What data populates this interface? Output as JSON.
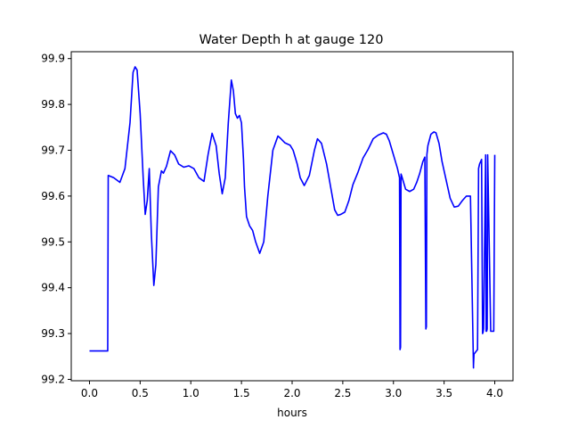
{
  "chart_data": {
    "type": "line",
    "title": "Water Depth h at gauge 120",
    "xlabel": "hours",
    "ylabel": "",
    "xlim": [
      -0.18,
      4.18
    ],
    "ylim": [
      99.197,
      99.915
    ],
    "grid": false,
    "xticks": [
      0.0,
      0.5,
      1.0,
      1.5,
      2.0,
      2.5,
      3.0,
      3.5,
      4.0
    ],
    "xtick_labels": [
      "0.0",
      "0.5",
      "1.0",
      "1.5",
      "2.0",
      "2.5",
      "3.0",
      "3.5",
      "4.0"
    ],
    "yticks": [
      99.2,
      99.3,
      99.4,
      99.5,
      99.6,
      99.7,
      99.8,
      99.9
    ],
    "ytick_labels": [
      "99.2",
      "99.3",
      "99.4",
      "99.5",
      "99.6",
      "99.7",
      "99.8",
      "99.9"
    ],
    "colors": {
      "series": "#0000ff",
      "axes": "#000000",
      "background": "#ffffff"
    },
    "series": [
      {
        "x": [
          0.0,
          0.18,
          0.185,
          0.24,
          0.3,
          0.35,
          0.4,
          0.43,
          0.45,
          0.47,
          0.5,
          0.53,
          0.55,
          0.57,
          0.59,
          0.61,
          0.635,
          0.655,
          0.68,
          0.71,
          0.73,
          0.76,
          0.8,
          0.84,
          0.88,
          0.93,
          0.98,
          1.03,
          1.08,
          1.13,
          1.17,
          1.21,
          1.25,
          1.28,
          1.31,
          1.34,
          1.37,
          1.4,
          1.42,
          1.44,
          1.46,
          1.48,
          1.5,
          1.52,
          1.53,
          1.55,
          1.58,
          1.61,
          1.64,
          1.68,
          1.72,
          1.76,
          1.81,
          1.86,
          1.89,
          1.93,
          1.98,
          2.01,
          2.05,
          2.08,
          2.12,
          2.17,
          2.22,
          2.25,
          2.29,
          2.34,
          2.38,
          2.42,
          2.45,
          2.48,
          2.52,
          2.56,
          2.6,
          2.65,
          2.7,
          2.75,
          2.8,
          2.85,
          2.9,
          2.93,
          2.96,
          3.0,
          3.04,
          3.06,
          3.065,
          3.07,
          3.075,
          3.08,
          3.12,
          3.16,
          3.2,
          3.23,
          3.26,
          3.29,
          3.31,
          3.32,
          3.325,
          3.33,
          3.34,
          3.37,
          3.4,
          3.42,
          3.45,
          3.48,
          3.52,
          3.56,
          3.6,
          3.64,
          3.68,
          3.72,
          3.76,
          3.79,
          3.79,
          3.795,
          3.83,
          3.84,
          3.84,
          3.85,
          3.87,
          3.88,
          3.885,
          3.89,
          3.91,
          3.91,
          3.915,
          3.92,
          3.925,
          3.93,
          3.96,
          3.98,
          3.99,
          4.0
        ],
        "y": [
          99.262,
          99.262,
          99.645,
          99.64,
          99.63,
          99.66,
          99.76,
          99.87,
          99.882,
          99.875,
          99.78,
          99.64,
          99.56,
          99.59,
          99.66,
          99.52,
          99.405,
          99.45,
          99.62,
          99.655,
          99.65,
          99.665,
          99.699,
          99.69,
          99.67,
          99.663,
          99.666,
          99.66,
          99.64,
          99.632,
          99.69,
          99.737,
          99.71,
          99.65,
          99.605,
          99.64,
          99.76,
          99.853,
          99.83,
          99.78,
          99.77,
          99.776,
          99.76,
          99.68,
          99.62,
          99.555,
          99.535,
          99.525,
          99.5,
          99.475,
          99.5,
          99.6,
          99.7,
          99.731,
          99.725,
          99.716,
          99.711,
          99.7,
          99.67,
          99.64,
          99.623,
          99.645,
          99.7,
          99.725,
          99.715,
          99.67,
          99.62,
          99.57,
          99.558,
          99.56,
          99.565,
          99.59,
          99.625,
          99.652,
          99.683,
          99.702,
          99.725,
          99.733,
          99.738,
          99.735,
          99.72,
          99.69,
          99.66,
          99.64,
          99.265,
          99.27,
          99.648,
          99.645,
          99.615,
          99.61,
          99.615,
          99.63,
          99.65,
          99.675,
          99.685,
          99.31,
          99.315,
          99.69,
          99.71,
          99.735,
          99.74,
          99.738,
          99.715,
          99.675,
          99.635,
          99.595,
          99.576,
          99.578,
          99.59,
          99.6,
          99.6,
          99.225,
          99.23,
          99.255,
          99.265,
          99.65,
          99.66,
          99.67,
          99.68,
          99.3,
          99.303,
          99.31,
          99.69,
          99.69,
          99.305,
          99.305,
          99.31,
          99.69,
          99.305,
          99.305,
          99.305,
          99.69
        ]
      }
    ]
  }
}
